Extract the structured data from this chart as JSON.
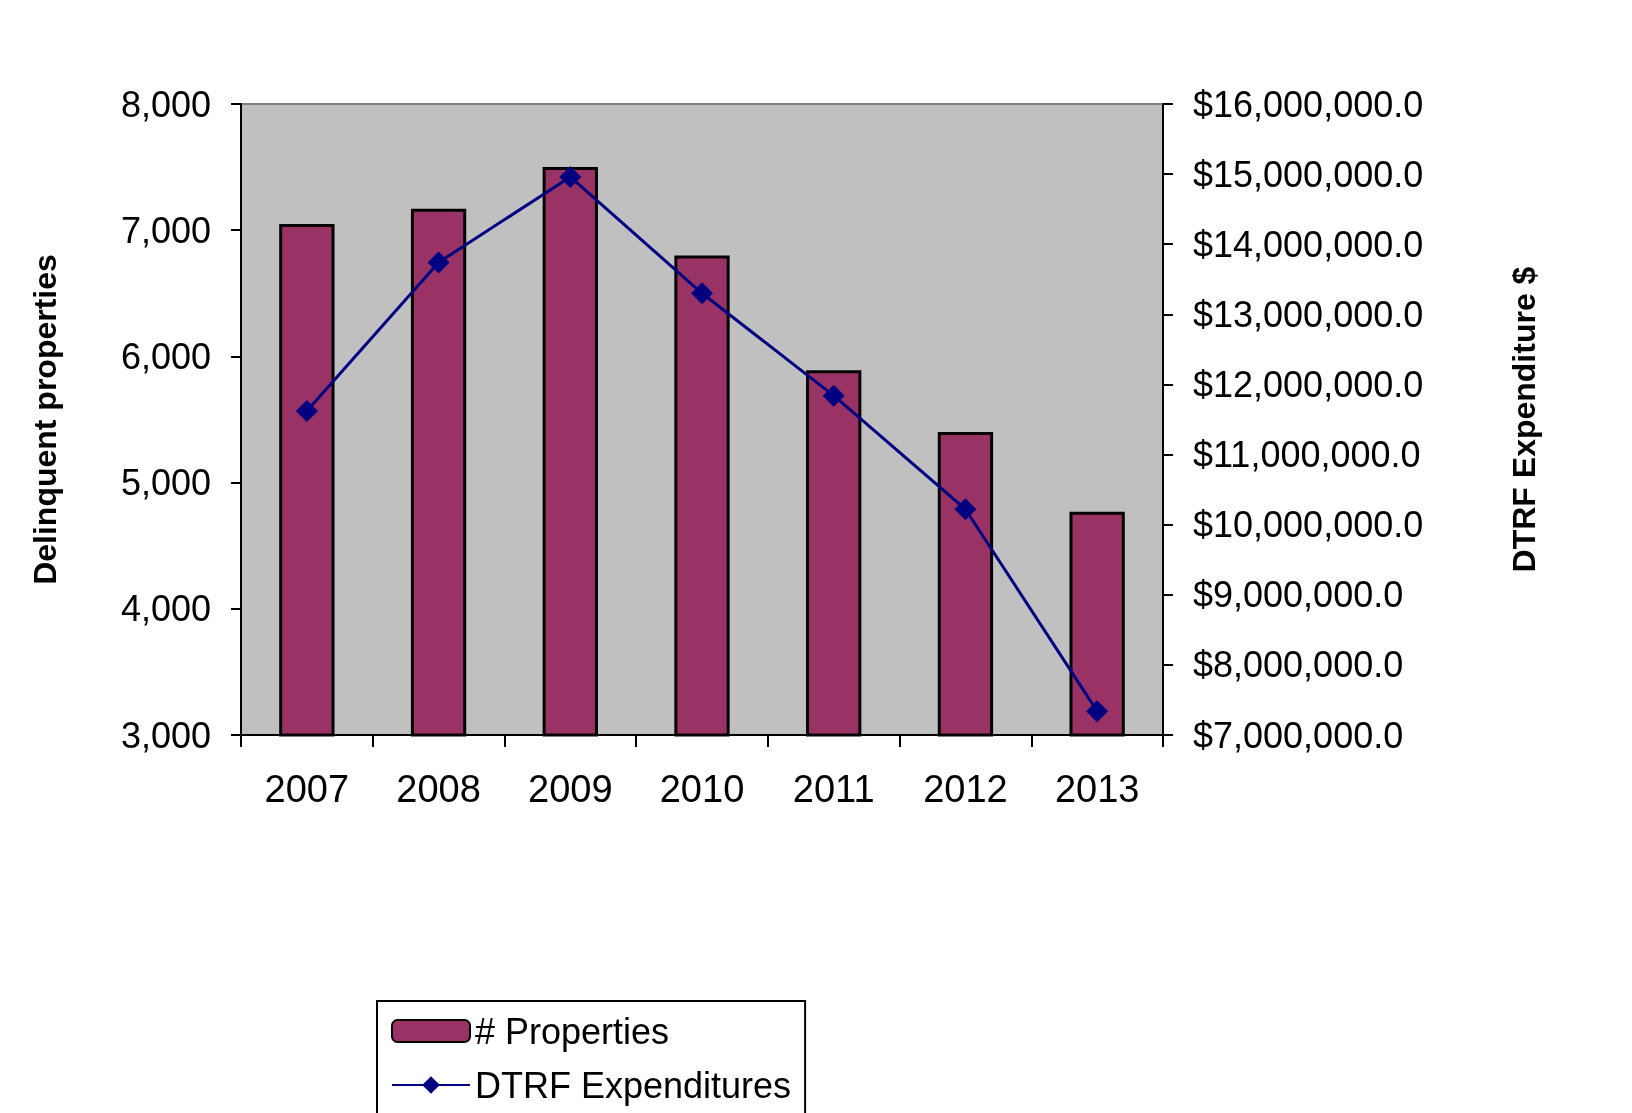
{
  "chart_data": {
    "type": "bar",
    "ylabel": "Delinquent properties",
    "y2label": "DTRF Expenditure $",
    "categories": [
      "2007",
      "2008",
      "2009",
      "2010",
      "2011",
      "2012",
      "2013"
    ],
    "series": [
      {
        "name": "# Properties",
        "color": "#993366",
        "values": [
          7050,
          7170,
          7500,
          6800,
          5890,
          5400,
          4770
        ]
      },
      {
        "name": "DTRF Expenditures",
        "type": "line",
        "axis": "y2",
        "color": "#000080",
        "marker": "diamond",
        "line_style": "solid",
        "values": [
          11620000,
          13740000,
          14960000,
          13300000,
          11840000,
          10220000,
          7340000
        ]
      }
    ],
    "ylim": [
      3000,
      8000
    ],
    "yticks": [
      {
        "value": 3000,
        "label": "3,000"
      },
      {
        "value": 4000,
        "label": "4,000"
      },
      {
        "value": 5000,
        "label": "5,000"
      },
      {
        "value": 6000,
        "label": "6,000"
      },
      {
        "value": 7000,
        "label": "7,000"
      },
      {
        "value": 8000,
        "label": "8,000"
      }
    ],
    "y2lim": [
      7000000,
      16000000
    ],
    "y2ticks": [
      {
        "value": 7000000,
        "label": "$7,000,000.0"
      },
      {
        "value": 8000000,
        "label": "$8,000,000.0"
      },
      {
        "value": 9000000,
        "label": "$9,000,000.0"
      },
      {
        "value": 10000000,
        "label": "$10,000,000.0"
      },
      {
        "value": 11000000,
        "label": "$11,000,000.0"
      },
      {
        "value": 12000000,
        "label": "$12,000,000.0"
      },
      {
        "value": 13000000,
        "label": "$13,000,000.0"
      },
      {
        "value": 14000000,
        "label": "$14,000,000.0"
      },
      {
        "value": 15000000,
        "label": "$15,000,000.0"
      },
      {
        "value": 16000000,
        "label": "$16,000,000.0"
      }
    ],
    "legend": "bottom",
    "grid": false
  }
}
